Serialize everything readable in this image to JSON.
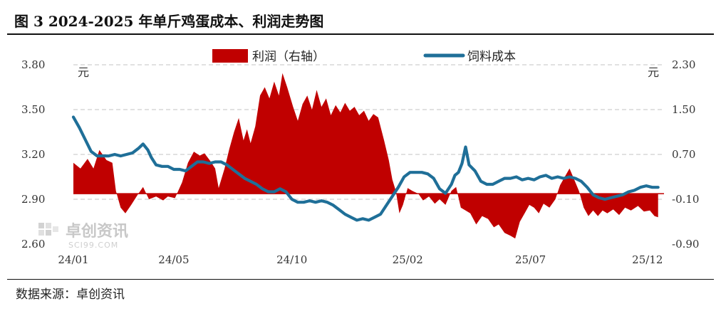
{
  "header": {
    "title": "图 3 2024-2025 年单斤鸡蛋成本、利润走势图"
  },
  "footer": {
    "source": "数据来源：卓创资讯"
  },
  "watermark": {
    "brand": "卓创资讯",
    "site": "SCI99.COM"
  },
  "colors": {
    "profit": "#c00000",
    "cost": "#1f6f98",
    "grid": "#cfcfcf"
  },
  "chart_data": {
    "type": "area+line",
    "title": "",
    "left_axis": {
      "unit": "元",
      "ylim": [
        2.6,
        3.8
      ],
      "ticks": [
        "3.80",
        "3.50",
        "3.20",
        "2.90",
        "2.60"
      ],
      "tick_values": [
        3.8,
        3.5,
        3.2,
        2.9,
        2.6
      ]
    },
    "right_axis": {
      "unit": "元",
      "ylim": [
        -0.9,
        2.3
      ],
      "ticks": [
        "2.30",
        "1.50",
        "0.70",
        "-0.10",
        "-0.90"
      ],
      "tick_values": [
        2.3,
        1.5,
        0.7,
        -0.1,
        -0.9
      ]
    },
    "x_ticks": [
      "24/01",
      "24/05",
      "24/10",
      "25/02",
      "25/07",
      "25/12"
    ],
    "x_tick_positions": [
      0,
      8.5,
      18.5,
      28.3,
      38.7,
      48.6
    ],
    "x_range": [
      0,
      50
    ],
    "legend": {
      "placement": "top-center"
    },
    "grid": "horizontal-dashed",
    "series": [
      {
        "name": "利润（右轴）",
        "axis": "right",
        "kind": "area",
        "points": [
          [
            0,
            0.55
          ],
          [
            0.6,
            0.45
          ],
          [
            1.2,
            0.62
          ],
          [
            1.7,
            0.45
          ],
          [
            2.2,
            0.78
          ],
          [
            2.8,
            0.6
          ],
          [
            3.3,
            0.55
          ],
          [
            3.6,
            0.05
          ],
          [
            4.0,
            -0.25
          ],
          [
            4.4,
            -0.35
          ],
          [
            4.9,
            -0.2
          ],
          [
            5.5,
            0.0
          ],
          [
            5.9,
            0.12
          ],
          [
            6.4,
            -0.1
          ],
          [
            7.0,
            -0.05
          ],
          [
            7.6,
            -0.12
          ],
          [
            8.0,
            -0.05
          ],
          [
            8.6,
            -0.08
          ],
          [
            9.2,
            0.2
          ],
          [
            9.7,
            0.55
          ],
          [
            10.2,
            0.75
          ],
          [
            10.7,
            0.68
          ],
          [
            11.1,
            0.72
          ],
          [
            11.6,
            0.58
          ],
          [
            12.0,
            0.45
          ],
          [
            12.3,
            0.1
          ],
          [
            12.8,
            0.45
          ],
          [
            13.2,
            0.8
          ],
          [
            13.6,
            1.1
          ],
          [
            14.0,
            1.35
          ],
          [
            14.4,
            0.95
          ],
          [
            14.7,
            1.15
          ],
          [
            15.0,
            0.9
          ],
          [
            15.4,
            1.2
          ],
          [
            15.8,
            1.75
          ],
          [
            16.2,
            1.9
          ],
          [
            16.6,
            1.7
          ],
          [
            17.0,
            2.0
          ],
          [
            17.4,
            1.75
          ],
          [
            17.7,
            2.15
          ],
          [
            18.1,
            1.9
          ],
          [
            18.6,
            1.55
          ],
          [
            19.0,
            1.3
          ],
          [
            19.4,
            1.6
          ],
          [
            19.8,
            1.75
          ],
          [
            20.2,
            1.5
          ],
          [
            20.6,
            1.85
          ],
          [
            21.0,
            1.55
          ],
          [
            21.4,
            1.7
          ],
          [
            21.8,
            1.4
          ],
          [
            22.2,
            1.58
          ],
          [
            22.6,
            1.45
          ],
          [
            23.0,
            1.62
          ],
          [
            23.4,
            1.48
          ],
          [
            23.8,
            1.55
          ],
          [
            24.2,
            1.4
          ],
          [
            24.6,
            1.48
          ],
          [
            25.0,
            1.3
          ],
          [
            25.4,
            1.42
          ],
          [
            25.8,
            1.36
          ],
          [
            26.3,
            0.95
          ],
          [
            26.7,
            0.6
          ],
          [
            27.0,
            0.25
          ],
          [
            27.3,
            0.05
          ],
          [
            27.6,
            -0.35
          ],
          [
            27.9,
            -0.2
          ],
          [
            28.3,
            0.1
          ],
          [
            28.7,
            0.05
          ],
          [
            29.2,
            0.0
          ],
          [
            29.6,
            -0.12
          ],
          [
            30.1,
            -0.05
          ],
          [
            30.6,
            -0.18
          ],
          [
            31.0,
            -0.1
          ],
          [
            31.5,
            -0.2
          ],
          [
            32.0,
            0.05
          ],
          [
            32.4,
            0.12
          ],
          [
            32.8,
            -0.25
          ],
          [
            33.2,
            -0.3
          ],
          [
            33.6,
            -0.35
          ],
          [
            34.1,
            -0.55
          ],
          [
            34.6,
            -0.4
          ],
          [
            35.1,
            -0.45
          ],
          [
            35.6,
            -0.6
          ],
          [
            36.0,
            -0.55
          ],
          [
            36.5,
            -0.7
          ],
          [
            37.0,
            -0.75
          ],
          [
            37.4,
            -0.8
          ],
          [
            37.8,
            -0.5
          ],
          [
            38.2,
            -0.35
          ],
          [
            38.6,
            -0.2
          ],
          [
            39.0,
            -0.25
          ],
          [
            39.4,
            -0.35
          ],
          [
            39.8,
            -0.18
          ],
          [
            40.3,
            -0.25
          ],
          [
            40.8,
            -0.1
          ],
          [
            41.2,
            0.15
          ],
          [
            41.6,
            0.3
          ],
          [
            42.0,
            0.45
          ],
          [
            42.4,
            0.25
          ],
          [
            42.8,
            0.05
          ],
          [
            43.2,
            -0.25
          ],
          [
            43.6,
            -0.4
          ],
          [
            44.0,
            -0.3
          ],
          [
            44.4,
            -0.4
          ],
          [
            44.8,
            -0.3
          ],
          [
            45.2,
            -0.35
          ],
          [
            45.7,
            -0.28
          ],
          [
            46.2,
            -0.38
          ],
          [
            46.7,
            -0.25
          ],
          [
            47.2,
            -0.3
          ],
          [
            47.8,
            -0.22
          ],
          [
            48.3,
            -0.32
          ],
          [
            48.8,
            -0.3
          ],
          [
            49.2,
            -0.4
          ],
          [
            49.5,
            -0.42
          ]
        ]
      },
      {
        "name": "饲料成本",
        "axis": "left",
        "kind": "line",
        "points": [
          [
            0,
            3.45
          ],
          [
            0.5,
            3.38
          ],
          [
            1.0,
            3.3
          ],
          [
            1.5,
            3.22
          ],
          [
            2.0,
            3.19
          ],
          [
            2.5,
            3.19
          ],
          [
            3.0,
            3.19
          ],
          [
            3.5,
            3.2
          ],
          [
            4.0,
            3.19
          ],
          [
            4.5,
            3.2
          ],
          [
            5.0,
            3.21
          ],
          [
            5.5,
            3.24
          ],
          [
            5.9,
            3.27
          ],
          [
            6.3,
            3.23
          ],
          [
            6.6,
            3.18
          ],
          [
            7.0,
            3.13
          ],
          [
            7.5,
            3.12
          ],
          [
            8.0,
            3.12
          ],
          [
            8.5,
            3.1
          ],
          [
            9.0,
            3.1
          ],
          [
            9.5,
            3.09
          ],
          [
            10.0,
            3.12
          ],
          [
            10.5,
            3.15
          ],
          [
            11.0,
            3.15
          ],
          [
            11.5,
            3.14
          ],
          [
            12.0,
            3.15
          ],
          [
            12.5,
            3.15
          ],
          [
            13.0,
            3.13
          ],
          [
            13.5,
            3.1
          ],
          [
            14.0,
            3.07
          ],
          [
            14.5,
            3.04
          ],
          [
            15.0,
            3.02
          ],
          [
            15.5,
            3.0
          ],
          [
            16.0,
            2.97
          ],
          [
            16.5,
            2.95
          ],
          [
            17.0,
            2.95
          ],
          [
            17.5,
            2.97
          ],
          [
            18.0,
            2.95
          ],
          [
            18.5,
            2.9
          ],
          [
            19.0,
            2.88
          ],
          [
            19.5,
            2.88
          ],
          [
            20.0,
            2.89
          ],
          [
            20.5,
            2.88
          ],
          [
            21.0,
            2.89
          ],
          [
            21.5,
            2.88
          ],
          [
            22.0,
            2.86
          ],
          [
            22.5,
            2.83
          ],
          [
            23.0,
            2.8
          ],
          [
            23.5,
            2.78
          ],
          [
            24.0,
            2.76
          ],
          [
            24.5,
            2.77
          ],
          [
            25.0,
            2.76
          ],
          [
            25.5,
            2.78
          ],
          [
            26.0,
            2.8
          ],
          [
            26.5,
            2.86
          ],
          [
            27.0,
            2.92
          ],
          [
            27.5,
            2.98
          ],
          [
            28.0,
            3.05
          ],
          [
            28.5,
            3.08
          ],
          [
            29.0,
            3.08
          ],
          [
            29.5,
            3.08
          ],
          [
            30.0,
            3.07
          ],
          [
            30.5,
            3.04
          ],
          [
            31.0,
            2.97
          ],
          [
            31.5,
            2.94
          ],
          [
            32.0,
            3.0
          ],
          [
            32.3,
            3.06
          ],
          [
            32.6,
            3.08
          ],
          [
            32.9,
            3.14
          ],
          [
            33.2,
            3.25
          ],
          [
            33.5,
            3.13
          ],
          [
            34.0,
            3.09
          ],
          [
            34.5,
            3.02
          ],
          [
            35.0,
            3.0
          ],
          [
            35.5,
            3.0
          ],
          [
            36.0,
            3.02
          ],
          [
            36.5,
            3.04
          ],
          [
            37.0,
            3.04
          ],
          [
            37.5,
            3.05
          ],
          [
            38.0,
            3.03
          ],
          [
            38.5,
            3.04
          ],
          [
            39.0,
            3.03
          ],
          [
            39.5,
            3.05
          ],
          [
            40.0,
            3.06
          ],
          [
            40.5,
            3.04
          ],
          [
            41.0,
            3.05
          ],
          [
            41.5,
            3.04
          ],
          [
            42.0,
            3.05
          ],
          [
            42.5,
            3.04
          ],
          [
            43.0,
            3.02
          ],
          [
            43.5,
            2.98
          ],
          [
            44.0,
            2.93
          ],
          [
            44.5,
            2.91
          ],
          [
            45.0,
            2.9
          ],
          [
            45.5,
            2.91
          ],
          [
            46.0,
            2.92
          ],
          [
            46.5,
            2.93
          ],
          [
            47.0,
            2.95
          ],
          [
            47.5,
            2.96
          ],
          [
            48.0,
            2.98
          ],
          [
            48.5,
            2.99
          ],
          [
            49.0,
            2.98
          ],
          [
            49.5,
            2.98
          ]
        ]
      }
    ]
  }
}
